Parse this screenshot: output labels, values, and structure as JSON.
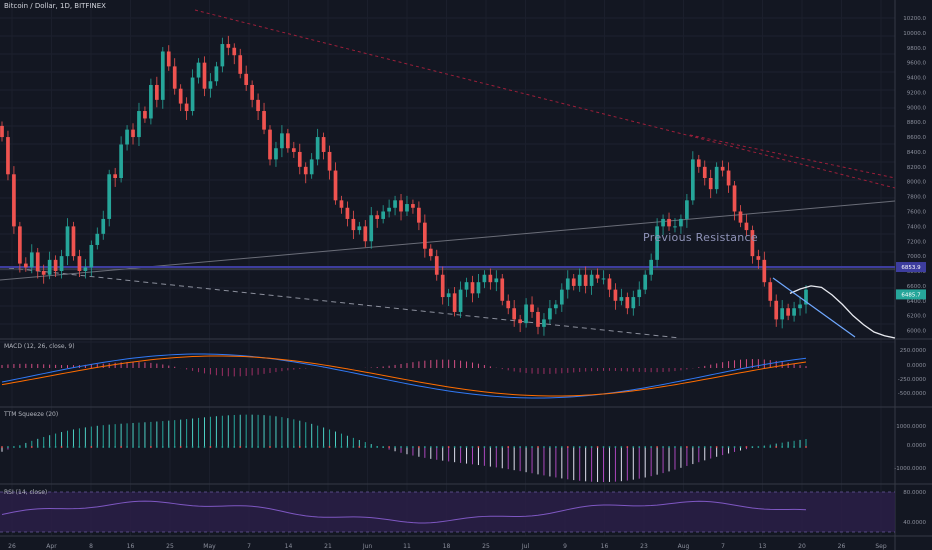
{
  "header": {
    "title": "Bitcoin / Dollar, 1D, BITFINEX"
  },
  "annotation": "Previous Resistance",
  "panes": {
    "macd": {
      "label": "MACD (12, 26, close, 9)",
      "ticks": [
        "250.0000",
        "0.0000",
        "-250.0000",
        "-500.0000"
      ]
    },
    "ttm": {
      "label": "TTM Squeeze (20)",
      "ticks": [
        "1000.0000",
        "0.0000",
        "-1000.0000"
      ]
    },
    "rsi": {
      "label": "RSI (14, close)",
      "ticks": [
        "80.0000",
        "40.0000"
      ]
    }
  },
  "badges": {
    "resistance": "6853.9",
    "last": "6485.7"
  },
  "colors": {
    "up": "#26a69a",
    "down": "#ef5350",
    "background": "#131722",
    "macd": "#3179f5",
    "signal": "#ff6d00",
    "rsi": "#7e57c2",
    "resistance": "#3d3d9e"
  },
  "chart_data": {
    "type": "candlestick",
    "ylim": [
      5900,
      10200
    ],
    "y_ticks": [
      "10200.0",
      "10000.0",
      "9800.0",
      "9600.0",
      "9400.0",
      "9200.0",
      "9000.0",
      "8800.0",
      "8600.0",
      "8400.0",
      "8200.0",
      "8000.0",
      "7800.0",
      "7600.0",
      "7400.0",
      "7200.0",
      "7000.0",
      "6800.0",
      "6600.0",
      "6400.0",
      "6200.0",
      "6000.0",
      "5800.0"
    ],
    "x_ticks": [
      "26",
      "Apr",
      "8",
      "16",
      "25",
      "May",
      "7",
      "14",
      "21",
      "Jun",
      "11",
      "18",
      "25",
      "Jul",
      "9",
      "16",
      "23",
      "Aug",
      "7",
      "13",
      "20",
      "26",
      "Sep"
    ],
    "close": [
      8600,
      8100,
      7400,
      6900,
      6850,
      7050,
      6800,
      6750,
      6950,
      6800,
      7000,
      7400,
      7000,
      6800,
      6850,
      7150,
      7300,
      7500,
      8100,
      8050,
      8500,
      8700,
      8600,
      8950,
      8850,
      9300,
      9100,
      9750,
      9550,
      9250,
      9050,
      8950,
      9400,
      9600,
      9250,
      9350,
      9550,
      9850,
      9800,
      9700,
      9450,
      9300,
      9100,
      8950,
      8700,
      8300,
      8450,
      8650,
      8450,
      8400,
      8200,
      8100,
      8300,
      8600,
      8400,
      8150,
      7750,
      7650,
      7500,
      7350,
      7400,
      7200,
      7550,
      7500,
      7600,
      7650,
      7750,
      7600,
      7700,
      7650,
      7450,
      7100,
      7000,
      6750,
      6450,
      6500,
      6250,
      6550,
      6650,
      6500,
      6650,
      6750,
      6650,
      6700,
      6400,
      6300,
      6150,
      6100,
      6350,
      6250,
      6050,
      6150,
      6300,
      6350,
      6550,
      6700,
      6600,
      6750,
      6600,
      6750,
      6700,
      6700,
      6550,
      6400,
      6450,
      6300,
      6450,
      6550,
      6750,
      6950,
      7400,
      7500,
      7400,
      7400,
      7500,
      7750,
      8300,
      8200,
      8050,
      7900,
      8200,
      8150,
      7950,
      7600,
      7450,
      7350,
      7000,
      6950,
      6650,
      6400,
      6150,
      6300,
      6200,
      6300,
      6350,
      6550
    ],
    "projection": [
      6500,
      6560,
      6600,
      6580,
      6480,
      6350,
      6200,
      6080,
      5980,
      5930,
      5900
    ]
  }
}
